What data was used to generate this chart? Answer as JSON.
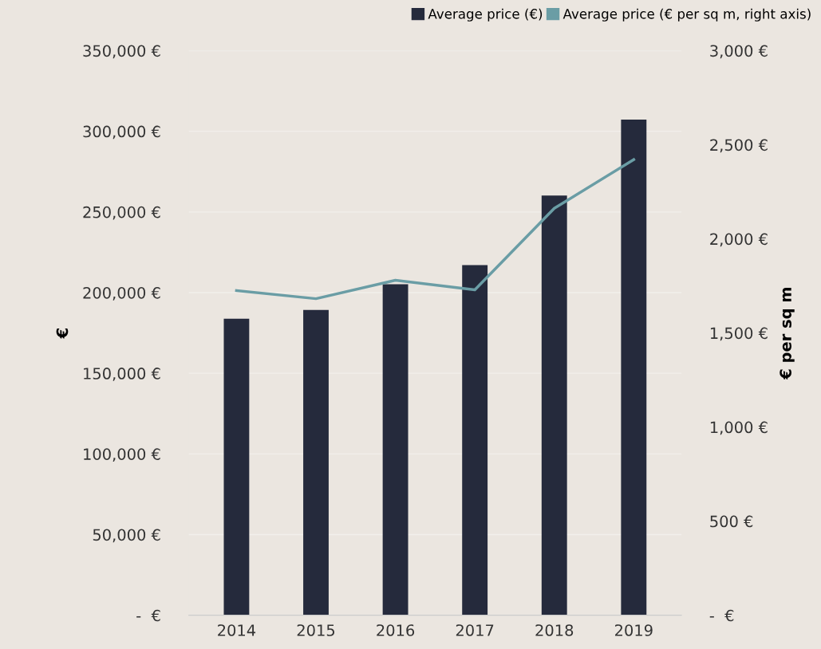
{
  "chart_data": {
    "type": "bar",
    "categories": [
      "2014",
      "2015",
      "2016",
      "2017",
      "2018",
      "2019"
    ],
    "series": [
      {
        "name": "Average price (€)",
        "color": "#252a3c",
        "values": [
          183800,
          189300,
          205200,
          217000,
          260200,
          307200
        ]
      },
      {
        "name": "Average price (€ per sq m, right axis)",
        "type": "line",
        "axis": "y2",
        "color": "#6a9da5",
        "values": [
          1725,
          1682,
          1780,
          1729,
          2162,
          2421
        ]
      }
    ],
    "ylabel": "€",
    "y2label": "€ per sq m",
    "ylim": [
      0,
      350000
    ],
    "yticks": [
      {
        "value": 0,
        "label": "-  €"
      },
      {
        "value": 50000,
        "label": "50,000 €"
      },
      {
        "value": 100000,
        "label": "100,000 €"
      },
      {
        "value": 150000,
        "label": "150,000 €"
      },
      {
        "value": 200000,
        "label": "200,000 €"
      },
      {
        "value": 250000,
        "label": "250,000 €"
      },
      {
        "value": 300000,
        "label": "300,000 €"
      },
      {
        "value": 350000,
        "label": "350,000 €"
      }
    ],
    "y2lim": [
      0,
      3000
    ],
    "y2ticks": [
      {
        "value": 0,
        "label": "-  €"
      },
      {
        "value": 500,
        "label": "500 €"
      },
      {
        "value": 1000,
        "label": "1,000 €"
      },
      {
        "value": 1500,
        "label": "1,500 €"
      },
      {
        "value": 2000,
        "label": "2,000 €"
      },
      {
        "value": 2500,
        "label": "2,500 €"
      },
      {
        "value": 3000,
        "label": "3,000 €"
      }
    ],
    "grid": "y",
    "legend": "top right",
    "marker": "none",
    "line_style": "solid"
  }
}
